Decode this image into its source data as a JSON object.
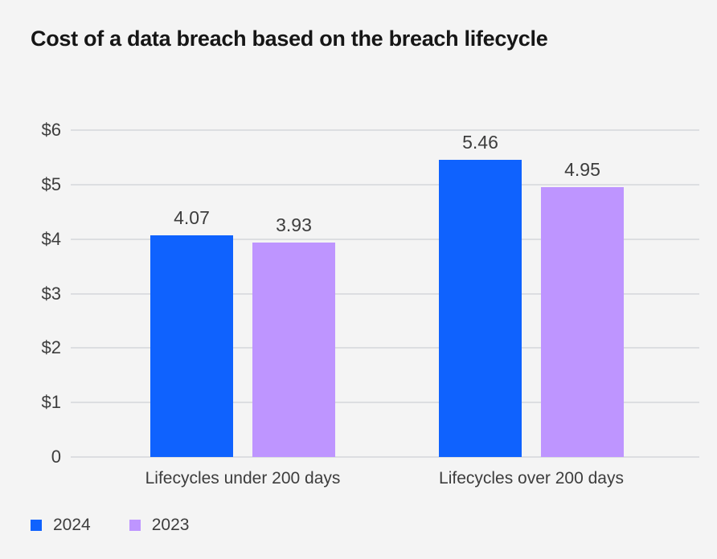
{
  "title": "Cost of a data breach based on the breach lifecycle",
  "colors": {
    "background": "#f4f4f4",
    "gridline": "#dcdee1",
    "title_text": "#161616",
    "label_text": "#3d3d3d",
    "series_2024": "#0f62fe",
    "series_2023": "#be95ff"
  },
  "chart_data": {
    "type": "bar",
    "title": "Cost of a data breach based on the breach lifecycle",
    "categories": [
      "Lifecycles under 200 days",
      "Lifecycles over 200 days"
    ],
    "series": [
      {
        "name": "2024",
        "color": "#0f62fe",
        "values": [
          4.07,
          5.46
        ],
        "labels": [
          "4.07",
          "5.46"
        ]
      },
      {
        "name": "2023",
        "color": "#be95ff",
        "values": [
          3.93,
          4.95
        ],
        "labels": [
          "3.93",
          "4.95"
        ]
      }
    ],
    "y_ticks": [
      {
        "label": "$6",
        "value": 6
      },
      {
        "label": "$5",
        "value": 5
      },
      {
        "label": "$4",
        "value": 4
      },
      {
        "label": "$3",
        "value": 3
      },
      {
        "label": "$2",
        "value": 2
      },
      {
        "label": "$1",
        "value": 1
      },
      {
        "label": "0",
        "value": 0
      }
    ],
    "ylim": [
      0,
      6
    ],
    "xlabel": "",
    "ylabel": "",
    "grid": true,
    "legend_position": "bottom-left",
    "value_labels_shown": true
  }
}
